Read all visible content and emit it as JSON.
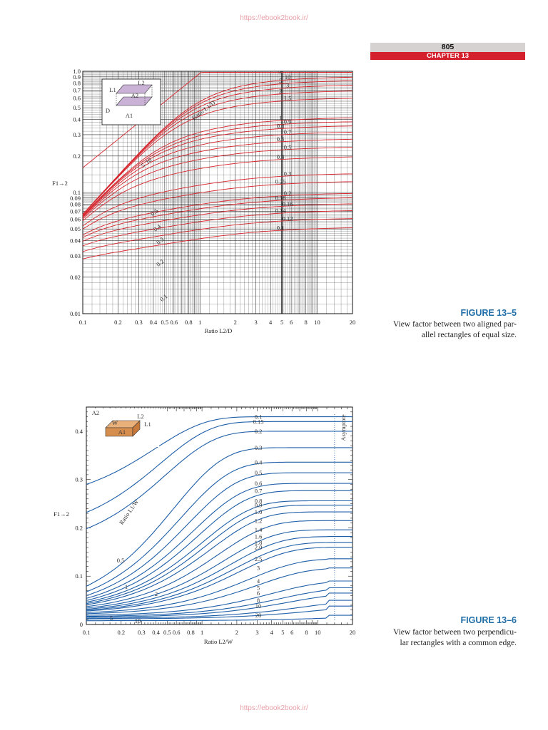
{
  "header": {
    "watermark": "https://ebook2book.ir/",
    "page_number": "805",
    "chapter": "CHAPTER 13",
    "accent_color": "#d41f2c",
    "figure_title_color": "#1f6ea8"
  },
  "figures": [
    {
      "title": "FIGURE 13–5",
      "caption_lines": [
        "View factor between two aligned par-",
        "allel rectangles of equal size."
      ]
    },
    {
      "title": "FIGURE 13–6",
      "caption_lines": [
        "View factor between two perpendicu-",
        "lar rectangles with a common edge."
      ]
    }
  ],
  "chart_data": [
    {
      "type": "line",
      "scale": "log-log",
      "xlabel": "Ratio L2/D",
      "ylabel": "F1→2",
      "xlim": [
        0.1,
        20
      ],
      "ylim": [
        0.01,
        1.0
      ],
      "x_ticks": [
        "0.1",
        "0.2",
        "0.3",
        "0.4",
        "0.5",
        "0.6",
        "0.8",
        "1",
        "2",
        "3",
        "4",
        "5",
        "6",
        "8",
        "10",
        "20"
      ],
      "y_ticks": [
        "0.01",
        "0.02",
        "0.03",
        "0.04",
        "0.05",
        "0.06",
        "0.07",
        "0.08",
        "0.09",
        "0.1",
        "0.2",
        "0.3",
        "0.4",
        "0.5",
        "0.6",
        "0.7",
        "0.8",
        "0.9",
        "1.0"
      ],
      "curve_family_label": "Ratio L1/D",
      "diagram_labels": [
        "L1",
        "L2",
        "D",
        "A1",
        "A2"
      ],
      "line_color": "#d8262e",
      "grid": true,
      "series": [
        {
          "name": "∞",
          "asymptote": 1.0
        },
        {
          "name": "10",
          "asymptote": 0.91
        },
        {
          "name": "5",
          "asymptote": 0.85
        },
        {
          "name": "3",
          "asymptote": 0.78
        },
        {
          "name": "2",
          "asymptote": 0.7
        },
        {
          "name": "1.5",
          "asymptote": 0.61
        },
        {
          "name": "1",
          "asymptote": 0.42
        },
        {
          "name": "0.9",
          "asymptote": 0.39
        },
        {
          "name": "0.8",
          "asymptote": 0.36
        },
        {
          "name": "0.7",
          "asymptote": 0.32
        },
        {
          "name": "0.6",
          "asymptote": 0.28
        },
        {
          "name": "0.5",
          "asymptote": 0.24
        },
        {
          "name": "0.4",
          "asymptote": 0.2
        },
        {
          "name": "0.3",
          "asymptote": 0.145
        },
        {
          "name": "0.25",
          "asymptote": 0.125
        },
        {
          "name": "0.2",
          "asymptote": 0.1
        },
        {
          "name": "0.18",
          "asymptote": 0.092
        },
        {
          "name": "0.16",
          "asymptote": 0.082
        },
        {
          "name": "0.14",
          "asymptote": 0.072
        },
        {
          "name": "0.12",
          "asymptote": 0.062
        },
        {
          "name": "0.1",
          "asymptote": 0.052
        }
      ],
      "inline_labels": [
        "10",
        "5",
        "3",
        "2",
        "1",
        "0.5",
        "0.4",
        "0.3",
        "0.2",
        "0.1"
      ]
    },
    {
      "type": "line",
      "scale": "log-x",
      "xlabel": "Ratio L2/W",
      "ylabel": "F1→2",
      "xlim": [
        0.1,
        20
      ],
      "ylim": [
        0,
        0.45
      ],
      "x_ticks": [
        "0.1",
        "0.2",
        "0.3",
        "0.4",
        "0.5",
        "0.6",
        "0.8",
        "1",
        "2",
        "3",
        "4",
        "5",
        "6",
        "8",
        "10",
        "20"
      ],
      "y_ticks": [
        "0",
        "0.1",
        "0.2",
        "0.3",
        "0.4"
      ],
      "curve_family_label": "Ratio L1/W",
      "diagram_labels": [
        "A2",
        "W",
        "A1",
        "L2",
        "L1"
      ],
      "asymptote_label": "Asymptote",
      "line_color": "#1f5fa8",
      "grid": true,
      "series": [
        {
          "name": "0.1",
          "asymptote": 0.43
        },
        {
          "name": "0.15",
          "asymptote": 0.42
        },
        {
          "name": "0.2",
          "asymptote": 0.4
        },
        {
          "name": "0.3",
          "asymptote": 0.366
        },
        {
          "name": "0.4",
          "asymptote": 0.336
        },
        {
          "name": "0.5",
          "asymptote": 0.314
        },
        {
          "name": "0.6",
          "asymptote": 0.292
        },
        {
          "name": "0.7",
          "asymptote": 0.277
        },
        {
          "name": "0.8",
          "asymptote": 0.256
        },
        {
          "name": "0.9",
          "asymptote": 0.247
        },
        {
          "name": "1.0",
          "asymptote": 0.233
        },
        {
          "name": "1.2",
          "asymptote": 0.215
        },
        {
          "name": "1.4",
          "asymptote": 0.196
        },
        {
          "name": "1.6",
          "asymptote": 0.182
        },
        {
          "name": "1.8",
          "asymptote": 0.17
        },
        {
          "name": "2.0",
          "asymptote": 0.16
        },
        {
          "name": "2.5",
          "asymptote": 0.136
        },
        {
          "name": "3",
          "asymptote": 0.117
        },
        {
          "name": "4",
          "asymptote": 0.09
        },
        {
          "name": "5",
          "asymptote": 0.076
        },
        {
          "name": "6",
          "asymptote": 0.065
        },
        {
          "name": "8",
          "asymptote": 0.05
        },
        {
          "name": "10",
          "asymptote": 0.038
        },
        {
          "name": "20",
          "asymptote": 0.019
        }
      ],
      "inline_labels": [
        "0.5",
        "1",
        "2",
        "5",
        "10"
      ]
    }
  ]
}
